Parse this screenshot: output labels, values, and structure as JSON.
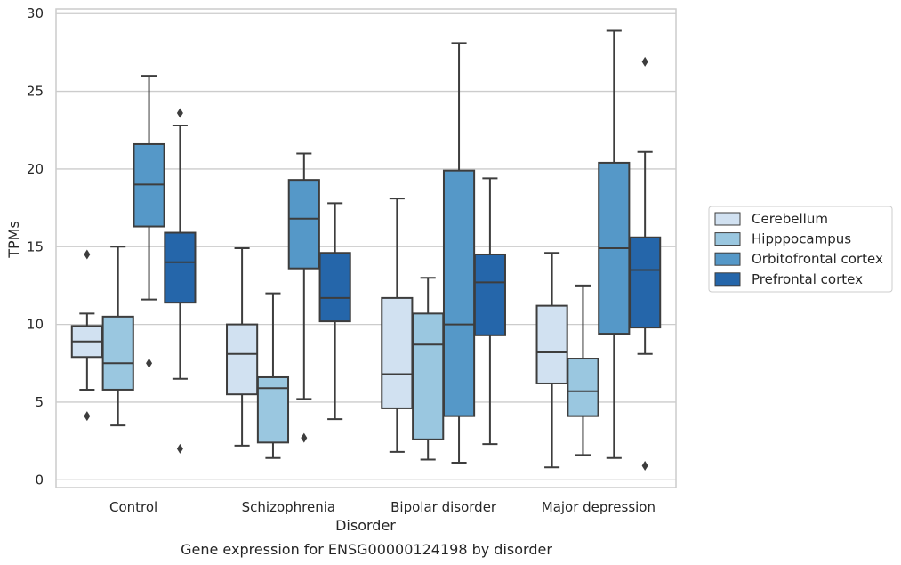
{
  "chart_data": {
    "type": "boxplot",
    "title": "",
    "caption": "Gene expression for ENSG00000124198 by disorder",
    "xlabel": "Disorder",
    "ylabel": "TPMs",
    "ylim": [
      -0.5,
      30.3
    ],
    "yticks": [
      0,
      5,
      10,
      15,
      20,
      25,
      30
    ],
    "grid": "horizontal",
    "legend_position": "right",
    "categories": [
      "Control",
      "Schizophrenia",
      "Bipolar disorder",
      "Major depression"
    ],
    "series": [
      {
        "name": "Cerebellum",
        "color": "#d1e1f1",
        "boxes": [
          {
            "whisker_low": 5.8,
            "q1": 7.9,
            "median": 8.9,
            "q3": 9.9,
            "whisker_high": 10.7,
            "outliers": [
              4.1,
              14.5
            ]
          },
          {
            "whisker_low": 2.2,
            "q1": 5.5,
            "median": 8.1,
            "q3": 10.0,
            "whisker_high": 14.9,
            "outliers": []
          },
          {
            "whisker_low": 1.8,
            "q1": 4.6,
            "median": 6.8,
            "q3": 11.7,
            "whisker_high": 18.1,
            "outliers": []
          },
          {
            "whisker_low": 0.8,
            "q1": 6.2,
            "median": 8.2,
            "q3": 11.2,
            "whisker_high": 14.6,
            "outliers": []
          }
        ]
      },
      {
        "name": "Hipppocampus",
        "color": "#9ac7e0",
        "boxes": [
          {
            "whisker_low": 3.5,
            "q1": 5.8,
            "median": 7.5,
            "q3": 10.5,
            "whisker_high": 15.0,
            "outliers": []
          },
          {
            "whisker_low": 1.4,
            "q1": 2.4,
            "median": 5.9,
            "q3": 6.6,
            "whisker_high": 12.0,
            "outliers": []
          },
          {
            "whisker_low": 1.3,
            "q1": 2.6,
            "median": 8.7,
            "q3": 10.7,
            "whisker_high": 13.0,
            "outliers": []
          },
          {
            "whisker_low": 1.6,
            "q1": 4.1,
            "median": 5.7,
            "q3": 7.8,
            "whisker_high": 12.5,
            "outliers": []
          }
        ]
      },
      {
        "name": "Orbitofrontal cortex",
        "color": "#5598c8",
        "boxes": [
          {
            "whisker_low": 11.6,
            "q1": 16.3,
            "median": 19.0,
            "q3": 21.6,
            "whisker_high": 26.0,
            "outliers": [
              7.5
            ]
          },
          {
            "whisker_low": 5.2,
            "q1": 13.6,
            "median": 16.8,
            "q3": 19.3,
            "whisker_high": 21.0,
            "outliers": [
              2.7
            ]
          },
          {
            "whisker_low": 1.1,
            "q1": 4.1,
            "median": 10.0,
            "q3": 19.9,
            "whisker_high": 28.1,
            "outliers": []
          },
          {
            "whisker_low": 1.4,
            "q1": 9.4,
            "median": 14.9,
            "q3": 20.4,
            "whisker_high": 28.9,
            "outliers": []
          }
        ]
      },
      {
        "name": "Prefrontal cortex",
        "color": "#2566aa",
        "boxes": [
          {
            "whisker_low": 6.5,
            "q1": 11.4,
            "median": 14.0,
            "q3": 15.9,
            "whisker_high": 22.8,
            "outliers": [
              2.0,
              23.6
            ]
          },
          {
            "whisker_low": 3.9,
            "q1": 10.2,
            "median": 11.7,
            "q3": 14.6,
            "whisker_high": 17.8,
            "outliers": []
          },
          {
            "whisker_low": 2.3,
            "q1": 9.3,
            "median": 12.7,
            "q3": 14.5,
            "whisker_high": 19.4,
            "outliers": []
          },
          {
            "whisker_low": 8.1,
            "q1": 9.8,
            "median": 13.5,
            "q3": 15.6,
            "whisker_high": 21.1,
            "outliers": [
              0.9,
              26.9
            ]
          }
        ]
      }
    ]
  }
}
